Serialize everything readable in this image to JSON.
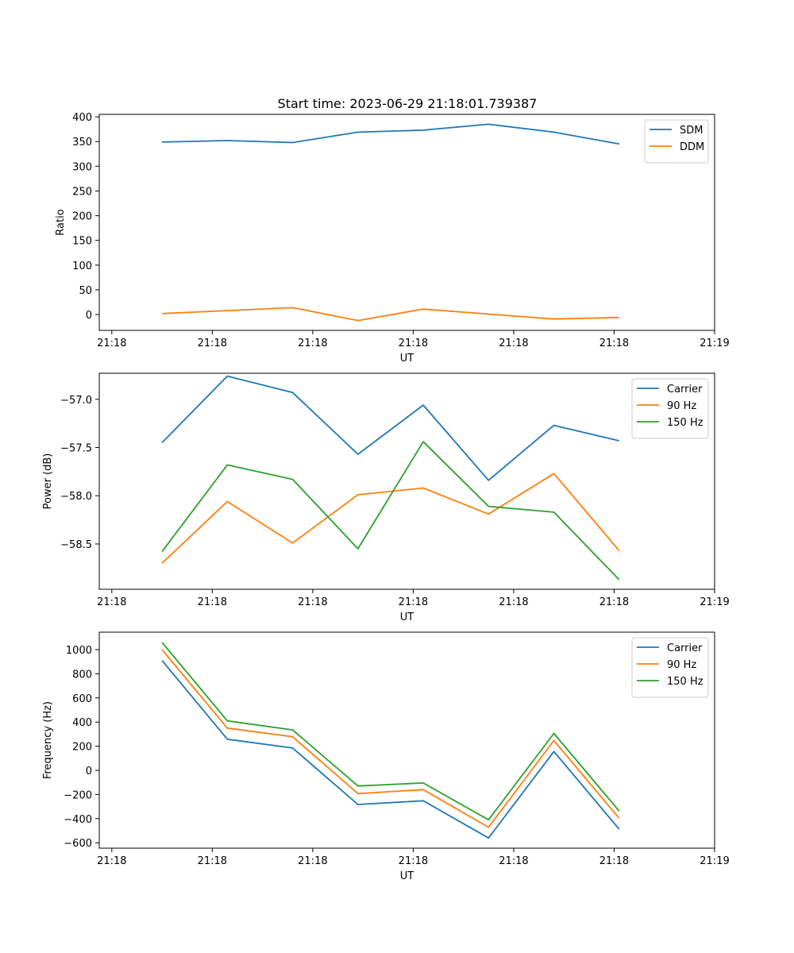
{
  "figure": {
    "title": "Start time: 2023-06-29 21:18:01.739387"
  },
  "chart_data": [
    {
      "type": "line",
      "title": "Start time: 2023-06-29 21:18:01.739387",
      "xlabel": "UT",
      "ylabel": "Ratio",
      "x_tick_labels": [
        "21:18",
        "21:18",
        "21:18",
        "21:18",
        "21:18",
        "21:18",
        "21:19"
      ],
      "x_ticks_seconds": [
        0,
        2,
        4,
        6,
        8,
        10,
        12
      ],
      "xlim_seconds": [
        -0.25,
        12.0
      ],
      "x_seconds": [
        1.0,
        2.3,
        3.6,
        4.9,
        6.2,
        7.5,
        8.8,
        10.1
      ],
      "ylim": [
        -32,
        405
      ],
      "y_ticks": [
        0,
        50,
        100,
        150,
        200,
        250,
        300,
        350,
        400
      ],
      "legend": "top-right",
      "grid": false,
      "series": [
        {
          "name": "SDM",
          "color": "#1f77b4",
          "values": [
            349,
            352,
            348,
            369,
            373,
            385,
            369,
            345
          ]
        },
        {
          "name": "DDM",
          "color": "#ff7f0e",
          "values": [
            2,
            8,
            14,
            -12,
            11,
            1,
            -9,
            -6
          ]
        }
      ]
    },
    {
      "type": "line",
      "title": "",
      "xlabel": "UT",
      "ylabel": "Power (dB)",
      "x_tick_labels": [
        "21:18",
        "21:18",
        "21:18",
        "21:18",
        "21:18",
        "21:18",
        "21:19"
      ],
      "x_ticks_seconds": [
        0,
        2,
        4,
        6,
        8,
        10,
        12
      ],
      "xlim_seconds": [
        -0.25,
        12.0
      ],
      "x_seconds": [
        1.0,
        2.3,
        3.6,
        4.9,
        6.2,
        7.5,
        8.8,
        10.1
      ],
      "ylim": [
        -58.97,
        -56.73
      ],
      "y_ticks": [
        -58.5,
        -58.0,
        -57.5,
        -57.0
      ],
      "y_tick_labels": [
        "−58.5",
        "−58.0",
        "−57.5",
        "−57.0"
      ],
      "legend": "top-right",
      "grid": false,
      "series": [
        {
          "name": "Carrier",
          "color": "#1f77b4",
          "values": [
            -57.45,
            -56.76,
            -56.93,
            -57.57,
            -57.06,
            -57.84,
            -57.27,
            -57.43
          ]
        },
        {
          "name": "90 Hz",
          "color": "#ff7f0e",
          "values": [
            -58.7,
            -58.06,
            -58.49,
            -57.99,
            -57.92,
            -58.19,
            -57.77,
            -58.57
          ]
        },
        {
          "name": "150 Hz",
          "color": "#2ca02c",
          "values": [
            -58.58,
            -57.68,
            -57.83,
            -58.55,
            -57.44,
            -58.11,
            -58.17,
            -58.87
          ]
        }
      ]
    },
    {
      "type": "line",
      "title": "",
      "xlabel": "UT",
      "ylabel": "Frequency (Hz)",
      "x_tick_labels": [
        "21:18",
        "21:18",
        "21:18",
        "21:18",
        "21:18",
        "21:18",
        "21:19"
      ],
      "x_ticks_seconds": [
        0,
        2,
        4,
        6,
        8,
        10,
        12
      ],
      "xlim_seconds": [
        -0.25,
        12.0
      ],
      "x_seconds": [
        1.0,
        2.3,
        3.6,
        4.9,
        6.2,
        7.5,
        8.8,
        10.1
      ],
      "ylim": [
        -645,
        1145
      ],
      "y_ticks": [
        -600,
        -400,
        -200,
        0,
        200,
        400,
        600,
        800,
        1000
      ],
      "y_tick_labels": [
        "−600",
        "−400",
        "−200",
        "0",
        "200",
        "400",
        "600",
        "800",
        "1000"
      ],
      "legend": "top-right",
      "grid": false,
      "series": [
        {
          "name": "Carrier",
          "color": "#1f77b4",
          "values": [
            910,
            258,
            185,
            -283,
            -252,
            -561,
            156,
            -488
          ]
        },
        {
          "name": "90 Hz",
          "color": "#ff7f0e",
          "values": [
            1000,
            350,
            278,
            -193,
            -160,
            -471,
            247,
            -397
          ]
        },
        {
          "name": "150 Hz",
          "color": "#2ca02c",
          "values": [
            1060,
            410,
            335,
            -130,
            -105,
            -410,
            306,
            -338
          ]
        }
      ]
    }
  ]
}
